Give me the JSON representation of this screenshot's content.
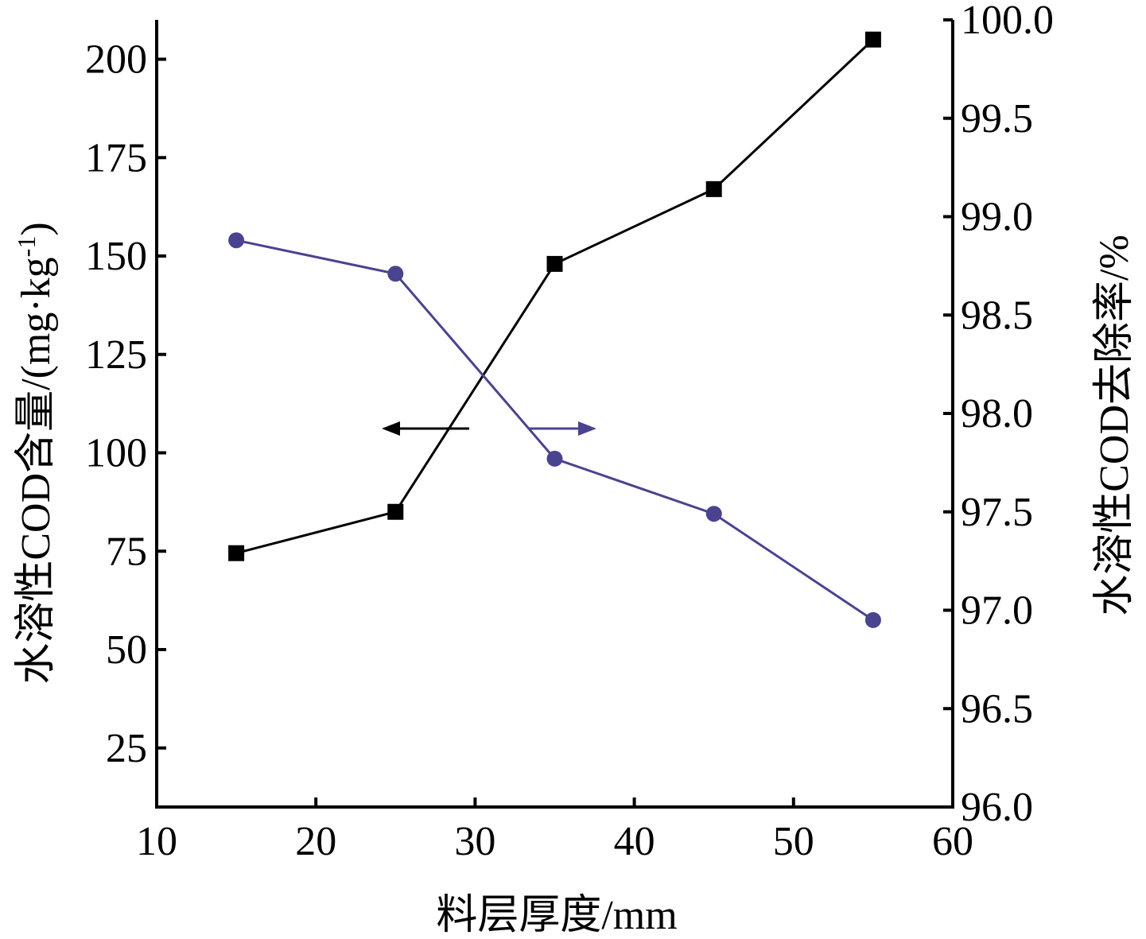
{
  "chart_data": {
    "type": "line",
    "xlabel": "料层厚度/mm",
    "ylabel_left": "水溶性COD含量/(mg·kg",
    "ylabel_left_sup": "-1",
    "ylabel_left_close": ")",
    "ylabel_right": "水溶性COD去除率/%",
    "xlim": [
      10,
      60
    ],
    "ylim_left": [
      10,
      210
    ],
    "ylim_right": [
      96.0,
      100.0
    ],
    "x_ticks": [
      "10",
      "20",
      "30",
      "40",
      "50",
      "60"
    ],
    "y_left_ticks": [
      "25",
      "50",
      "75",
      "100",
      "125",
      "150",
      "175",
      "200"
    ],
    "y_right_ticks": [
      "96.0",
      "96.5",
      "97.0",
      "97.5",
      "98.0",
      "98.5",
      "99.0",
      "99.5",
      "100.0"
    ],
    "series": [
      {
        "axis": "left",
        "marker": "square",
        "color": "#000000",
        "x": [
          15,
          25,
          35,
          45,
          55
        ],
        "y": [
          74.5,
          85,
          148,
          167,
          205
        ]
      },
      {
        "axis": "right",
        "marker": "circle",
        "color": "#4a4390",
        "x": [
          15,
          25,
          35,
          45,
          55
        ],
        "y": [
          98.88,
          98.71,
          97.77,
          97.49,
          96.95
        ]
      }
    ],
    "annotations": [
      {
        "type": "arrow",
        "direction": "left",
        "color": "#000000"
      },
      {
        "type": "arrow",
        "direction": "right",
        "color": "#4a4390"
      }
    ]
  }
}
